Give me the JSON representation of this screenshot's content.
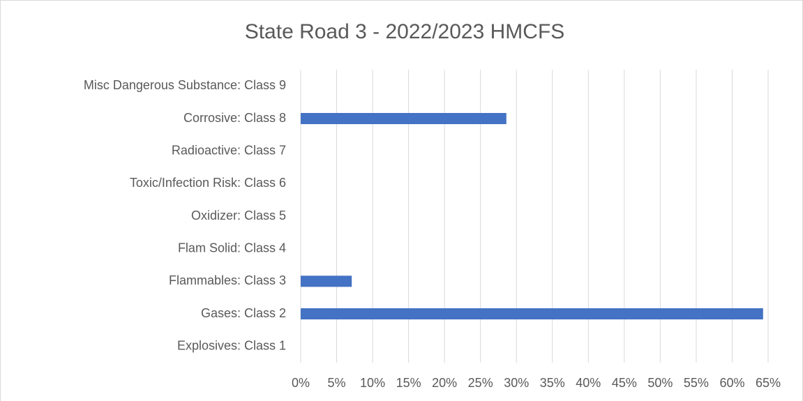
{
  "chart_data": {
    "type": "hbar",
    "title": "State Road 3 - 2022/2023 HMCFS",
    "categories": [
      "Explosives: Class 1",
      "Gases: Class 2",
      "Flammables: Class 3",
      "Flam Solid: Class 4",
      "Oxidizer: Class 5",
      "Toxic/Infection Risk: Class 6",
      "Radioactive: Class 7",
      "Corrosive: Class 8",
      "Misc Dangerous Substance: Class 9"
    ],
    "values": [
      0,
      64.3,
      7.1,
      0,
      0,
      0,
      0,
      28.6,
      0
    ],
    "color": "#4472c4",
    "xlim": [
      0,
      65
    ],
    "xticks": [
      {
        "value": 0,
        "label": "0%"
      },
      {
        "value": 5,
        "label": "5%"
      },
      {
        "value": 10,
        "label": "10%"
      },
      {
        "value": 15,
        "label": "15%"
      },
      {
        "value": 20,
        "label": "20%"
      },
      {
        "value": 25,
        "label": "25%"
      },
      {
        "value": 30,
        "label": "30%"
      },
      {
        "value": 35,
        "label": "35%"
      },
      {
        "value": 40,
        "label": "40%"
      },
      {
        "value": 45,
        "label": "45%"
      },
      {
        "value": 50,
        "label": "50%"
      },
      {
        "value": 55,
        "label": "55%"
      },
      {
        "value": 60,
        "label": "60%"
      },
      {
        "value": 65,
        "label": "65%"
      }
    ],
    "grid": true
  }
}
